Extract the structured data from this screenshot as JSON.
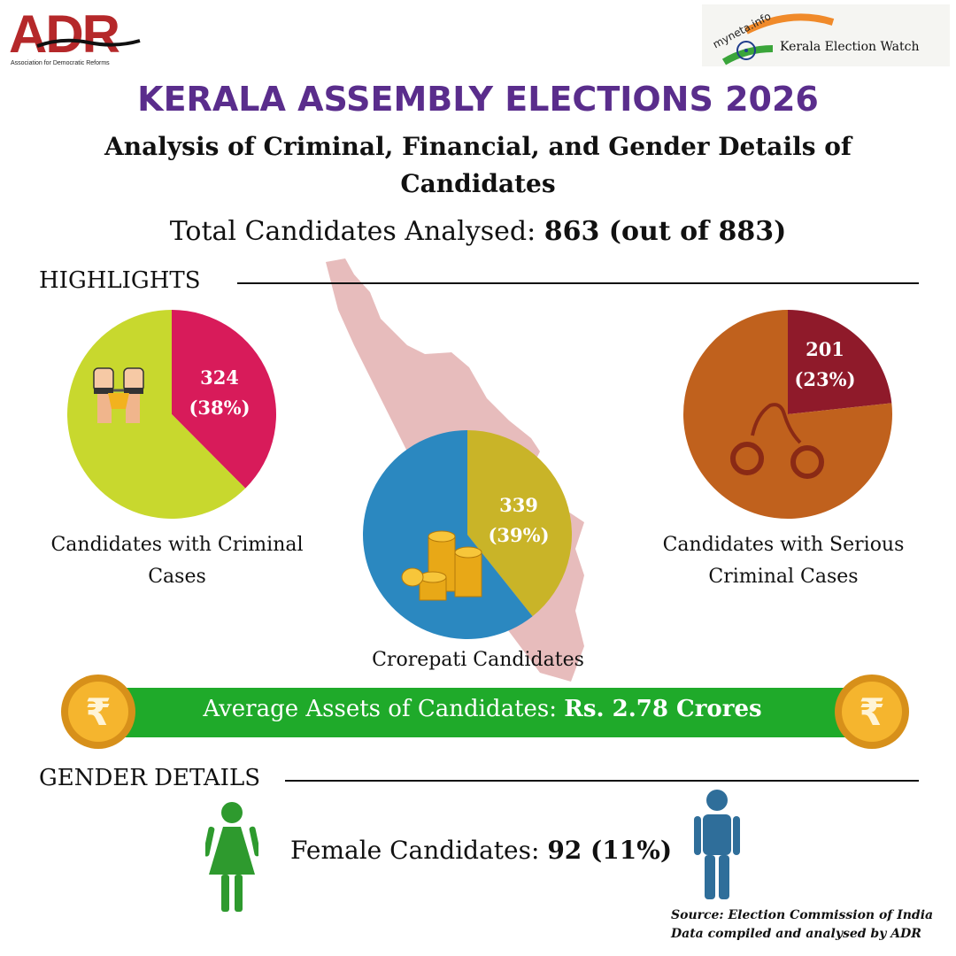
{
  "header": {
    "adr_logo_text": "ADR",
    "adr_logo_subtitle": "Association for Democratic Reforms",
    "myneta_logo_text": "myneta.info",
    "myneta_subtitle": "Kerala Election Watch"
  },
  "title": "KERALA ASSEMBLY ELECTIONS 2026",
  "subtitle": "Analysis of Criminal, Financial, and Gender Details of Candidates",
  "total": {
    "label": "Total Candidates Analysed: ",
    "value": "863 (out of 883)"
  },
  "sections": {
    "highlights": "HIGHLIGHTS",
    "gender": "GENDER DETAILS"
  },
  "colors": {
    "title_purple": "#5a2d8c",
    "criminal_slice": "#d81b5a",
    "criminal_rest": "#c8d82e",
    "crorepati_slice": "#c9b428",
    "crorepati_rest": "#2b88c0",
    "serious_slice": "#8f1a2a",
    "serious_rest": "#c0611d",
    "assets_bar": "#1faa2a",
    "map": "#e6b8b8"
  },
  "chart_data": [
    {
      "type": "pie",
      "name": "criminal",
      "caption": "Candidates with Criminal Cases",
      "highlight_count": "324",
      "highlight_pct": "(38%)",
      "values": [
        324,
        539
      ],
      "icon": "handcuffed-hands-icon"
    },
    {
      "type": "pie",
      "name": "crorepati",
      "caption": "Crorepati Candidates",
      "highlight_count": "339",
      "highlight_pct": "(39%)",
      "values": [
        339,
        524
      ],
      "icon": "coin-stacks-icon"
    },
    {
      "type": "pie",
      "name": "serious",
      "caption": "Candidates with Serious Criminal Cases",
      "highlight_count": "201",
      "highlight_pct": "(23%)",
      "values": [
        201,
        662
      ],
      "icon": "handcuffs-icon"
    }
  ],
  "assets": {
    "label": "Average Assets of Candidates: ",
    "value": "Rs. 2.78 Crores",
    "icon": "rupee-coin-icon"
  },
  "gender": {
    "female_label": "Female Candidates: ",
    "female_value": "92 (11%)",
    "female_icon": "female-figure-icon",
    "male_icon": "male-figure-icon"
  },
  "source": {
    "line1": "Source: Election Commission of India",
    "line2": "Data compiled and analysed by ADR"
  }
}
